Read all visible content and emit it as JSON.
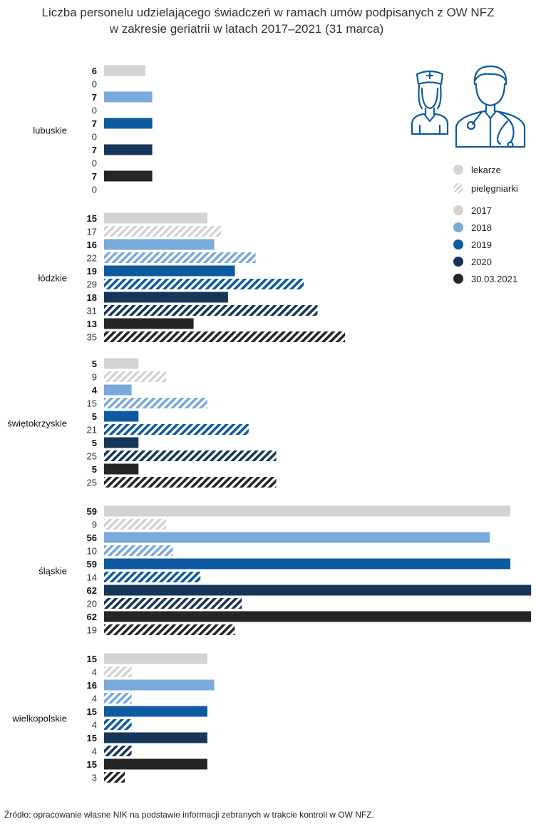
{
  "title_line1": "Liczba personelu udzielającego świadczeń w ramach umów podpisanych z OW NFZ",
  "title_line2": "w zakresie geriatrii w latach 2017–2021 (31 marca)",
  "source": "Źródło: opracowanie własne NIK na podstawie informacji zebranych w trakcie kontroli w OW NFZ.",
  "icons": [
    "nurse-icon",
    "doctor-icon"
  ],
  "colors": {
    "2017": "#d3d3d3",
    "2018": "#7aa9dc",
    "2019": "#0d5aa0",
    "2020": "#153659",
    "30.03.2021": "#252525"
  },
  "chart_data": {
    "type": "bar",
    "orientation": "horizontal",
    "title": "Liczba personelu udzielającego świadczeń w ramach umów podpisanych z OW NFZ w zakresie geriatrii w latach 2017–2021 (31 marca)",
    "legend_types": [
      {
        "key": "lekarze",
        "label": "lekarze",
        "style": "solid"
      },
      {
        "key": "pielegniarki",
        "label": "pielęgniarki",
        "style": "hatched"
      }
    ],
    "years": [
      "2017",
      "2018",
      "2019",
      "2020",
      "30.03.2021"
    ],
    "legend_position": "top-right",
    "grid": false,
    "categories": [
      "lubuskie",
      "łódzkie",
      "świętokrzyskie",
      "śląskie",
      "wielkopolskie"
    ],
    "series": [
      {
        "name": "lekarze",
        "year": "2017",
        "values": [
          6,
          15,
          5,
          59,
          15
        ]
      },
      {
        "name": "pielęgniarki",
        "year": "2017",
        "values": [
          0,
          17,
          9,
          9,
          4
        ]
      },
      {
        "name": "lekarze",
        "year": "2018",
        "values": [
          7,
          16,
          4,
          56,
          16
        ]
      },
      {
        "name": "pielęgniarki",
        "year": "2018",
        "values": [
          0,
          22,
          15,
          10,
          4
        ]
      },
      {
        "name": "lekarze",
        "year": "2019",
        "values": [
          7,
          19,
          5,
          59,
          15
        ]
      },
      {
        "name": "pielęgniarki",
        "year": "2019",
        "values": [
          0,
          29,
          21,
          14,
          4
        ]
      },
      {
        "name": "lekarze",
        "year": "2020",
        "values": [
          7,
          18,
          5,
          62,
          15
        ]
      },
      {
        "name": "pielęgniarki",
        "year": "2020",
        "values": [
          0,
          31,
          25,
          20,
          4
        ]
      },
      {
        "name": "lekarze",
        "year": "30.03.2021",
        "values": [
          7,
          13,
          5,
          62,
          15
        ]
      },
      {
        "name": "pielęgniarki",
        "year": "30.03.2021",
        "values": [
          0,
          35,
          25,
          19,
          3
        ]
      }
    ]
  }
}
